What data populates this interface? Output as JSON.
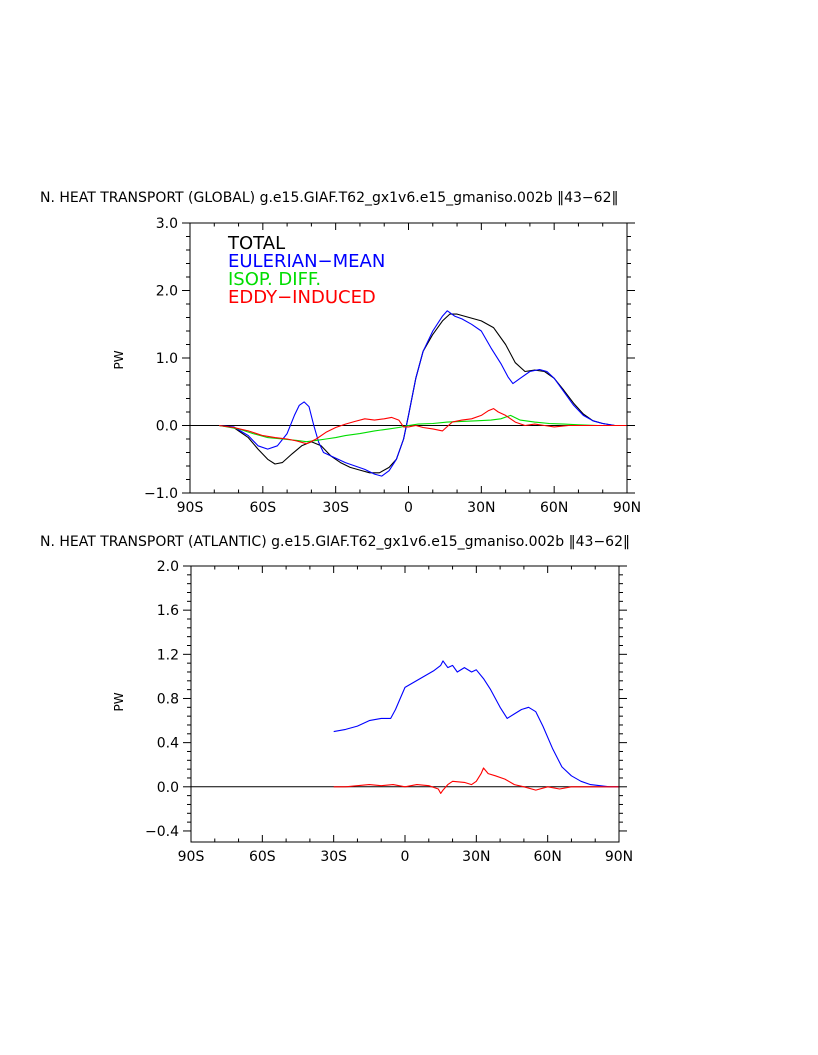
{
  "colors": {
    "total": "#000000",
    "eulerian": "#0000ff",
    "isop": "#00dd00",
    "eddy": "#ff0000"
  },
  "chart_data": [
    {
      "type": "line",
      "title": "N. HEAT TRANSPORT (GLOBAL) g.e15.GIAF.T62_gx1v6.e15_gmaniso.002b ‖43−62‖",
      "xlabel": "",
      "ylabel": "PW",
      "xlim": [
        -90,
        90
      ],
      "ylim": [
        -1.0,
        3.0
      ],
      "xticks": [
        -90,
        -60,
        -30,
        0,
        30,
        60,
        90
      ],
      "xtick_labels": [
        "90S",
        "60S",
        "30S",
        "0",
        "30N",
        "60N",
        "90N"
      ],
      "yticks": [
        -1.0,
        0.0,
        1.0,
        2.0,
        3.0
      ],
      "ytick_labels": [
        "−1.0",
        "0.0",
        "1.0",
        "2.0",
        "3.0"
      ],
      "legend": {
        "placement": "top-left",
        "entries": [
          "TOTAL",
          "EULERIAN−MEAN",
          "ISOP. DIFF.",
          "EDDY−INDUCED"
        ]
      },
      "series": [
        {
          "name": "TOTAL",
          "color_key": "total",
          "x": [
            -78,
            -72,
            -66,
            -62,
            -58,
            -55,
            -52,
            -48,
            -44,
            -40,
            -36,
            -32,
            -28,
            -24,
            -20,
            -16,
            -12,
            -8,
            -5,
            -2,
            0,
            3,
            6,
            10,
            14,
            17,
            20,
            25,
            30,
            35,
            40,
            44,
            48,
            52,
            56,
            60,
            64,
            68,
            72,
            76,
            80,
            85,
            90
          ],
          "y": [
            0.0,
            -0.03,
            -0.18,
            -0.35,
            -0.5,
            -0.57,
            -0.55,
            -0.42,
            -0.3,
            -0.24,
            -0.3,
            -0.45,
            -0.55,
            -0.62,
            -0.66,
            -0.7,
            -0.7,
            -0.62,
            -0.5,
            -0.2,
            0.15,
            0.7,
            1.1,
            1.35,
            1.55,
            1.65,
            1.65,
            1.6,
            1.55,
            1.45,
            1.2,
            0.93,
            0.8,
            0.82,
            0.8,
            0.7,
            0.52,
            0.33,
            0.17,
            0.07,
            0.03,
            0.0,
            0.0
          ]
        },
        {
          "name": "EULERIAN−MEAN",
          "color_key": "eulerian",
          "x": [
            -78,
            -72,
            -66,
            -62,
            -58,
            -54,
            -50,
            -47,
            -45,
            -43,
            -41,
            -39,
            -37,
            -35,
            -32,
            -29,
            -26,
            -22,
            -18,
            -14,
            -11,
            -8,
            -5,
            -2,
            0,
            3,
            6,
            10,
            14,
            16,
            19,
            22,
            26,
            30,
            34,
            38,
            41,
            43,
            46,
            50,
            54,
            57,
            60,
            64,
            68,
            72,
            76,
            80,
            85,
            90
          ],
          "y": [
            0.0,
            -0.02,
            -0.15,
            -0.3,
            -0.35,
            -0.3,
            -0.12,
            0.15,
            0.3,
            0.35,
            0.28,
            0.0,
            -0.25,
            -0.4,
            -0.45,
            -0.5,
            -0.55,
            -0.6,
            -0.65,
            -0.72,
            -0.75,
            -0.67,
            -0.5,
            -0.2,
            0.15,
            0.7,
            1.1,
            1.4,
            1.62,
            1.7,
            1.62,
            1.58,
            1.5,
            1.4,
            1.15,
            0.92,
            0.72,
            0.62,
            0.7,
            0.8,
            0.83,
            0.8,
            0.7,
            0.5,
            0.3,
            0.15,
            0.07,
            0.03,
            0.0,
            0.0
          ]
        },
        {
          "name": "ISOP. DIFF.",
          "color_key": "isop",
          "x": [
            -78,
            -70,
            -64,
            -58,
            -52,
            -46,
            -42,
            -38,
            -34,
            -30,
            -26,
            -20,
            -14,
            -8,
            -4,
            0,
            4,
            10,
            16,
            22,
            28,
            34,
            38,
            42,
            46,
            52,
            58,
            64,
            70,
            78,
            90
          ],
          "y": [
            0.0,
            -0.05,
            -0.12,
            -0.18,
            -0.2,
            -0.22,
            -0.24,
            -0.22,
            -0.2,
            -0.18,
            -0.15,
            -0.12,
            -0.08,
            -0.05,
            -0.03,
            0.0,
            0.02,
            0.03,
            0.05,
            0.06,
            0.07,
            0.08,
            0.1,
            0.15,
            0.08,
            0.05,
            0.03,
            0.02,
            0.01,
            0.0,
            0.0
          ]
        },
        {
          "name": "EDDY−INDUCED",
          "color_key": "eddy",
          "x": [
            -78,
            -72,
            -66,
            -60,
            -55,
            -50,
            -46,
            -42,
            -38,
            -34,
            -30,
            -26,
            -22,
            -18,
            -14,
            -10,
            -7,
            -4,
            -2,
            0,
            3,
            6,
            10,
            14,
            18,
            22,
            26,
            30,
            33,
            35,
            37,
            40,
            44,
            48,
            52,
            56,
            60,
            66,
            72,
            80,
            90
          ],
          "y": [
            0.0,
            -0.03,
            -0.08,
            -0.15,
            -0.18,
            -0.2,
            -0.23,
            -0.27,
            -0.2,
            -0.1,
            -0.03,
            0.02,
            0.06,
            0.1,
            0.08,
            0.1,
            0.12,
            0.08,
            -0.02,
            -0.02,
            0.0,
            -0.03,
            -0.05,
            -0.08,
            0.05,
            0.08,
            0.1,
            0.15,
            0.22,
            0.25,
            0.2,
            0.15,
            0.05,
            0.0,
            0.02,
            0.0,
            -0.02,
            0.0,
            0.0,
            0.0,
            0.0
          ]
        }
      ]
    },
    {
      "type": "line",
      "title": "N. HEAT TRANSPORT (ATLANTIC) g.e15.GIAF.T62_gx1v6.e15_gmaniso.002b ‖43−62‖",
      "xlabel": "",
      "ylabel": "PW",
      "xlim": [
        -90,
        90
      ],
      "ylim": [
        -0.5,
        2.0
      ],
      "xticks": [
        -90,
        -60,
        -30,
        0,
        30,
        60,
        90
      ],
      "xtick_labels": [
        "90S",
        "60S",
        "30S",
        "0",
        "30N",
        "60N",
        "90N"
      ],
      "yticks": [
        -0.4,
        0.0,
        0.4,
        0.8,
        1.2,
        1.6,
        2.0
      ],
      "ytick_labels": [
        "−0.4",
        "0.0",
        "0.4",
        "0.8",
        "1.2",
        "1.6",
        "2.0"
      ],
      "series": [
        {
          "name": "EULERIAN−MEAN",
          "color_key": "eulerian",
          "x": [
            -30,
            -25,
            -20,
            -15,
            -10,
            -6,
            -4,
            -2,
            0,
            4,
            8,
            12,
            15,
            16,
            18,
            20,
            22,
            25,
            28,
            30,
            33,
            36,
            40,
            43,
            46,
            49,
            52,
            55,
            58,
            62,
            66,
            70,
            74,
            78,
            82,
            86,
            90
          ],
          "y": [
            0.5,
            0.52,
            0.55,
            0.6,
            0.62,
            0.62,
            0.7,
            0.8,
            0.9,
            0.95,
            1.0,
            1.05,
            1.1,
            1.14,
            1.08,
            1.1,
            1.04,
            1.08,
            1.04,
            1.06,
            0.98,
            0.88,
            0.72,
            0.62,
            0.66,
            0.7,
            0.72,
            0.68,
            0.55,
            0.35,
            0.18,
            0.1,
            0.05,
            0.02,
            0.01,
            0.0,
            0.0
          ]
        },
        {
          "name": "EDDY−INDUCED",
          "color_key": "eddy",
          "x": [
            -30,
            -25,
            -20,
            -15,
            -10,
            -5,
            0,
            5,
            10,
            14,
            15,
            16,
            18,
            20,
            25,
            28,
            30,
            32,
            33,
            35,
            38,
            42,
            46,
            50,
            55,
            60,
            65,
            70,
            80,
            90
          ],
          "y": [
            0.0,
            0.0,
            0.01,
            0.02,
            0.01,
            0.02,
            0.0,
            0.02,
            0.01,
            -0.02,
            -0.06,
            -0.03,
            0.02,
            0.05,
            0.04,
            0.02,
            0.05,
            0.12,
            0.17,
            0.12,
            0.1,
            0.07,
            0.02,
            0.0,
            -0.03,
            0.0,
            -0.02,
            0.0,
            0.0,
            0.0
          ]
        }
      ]
    }
  ]
}
